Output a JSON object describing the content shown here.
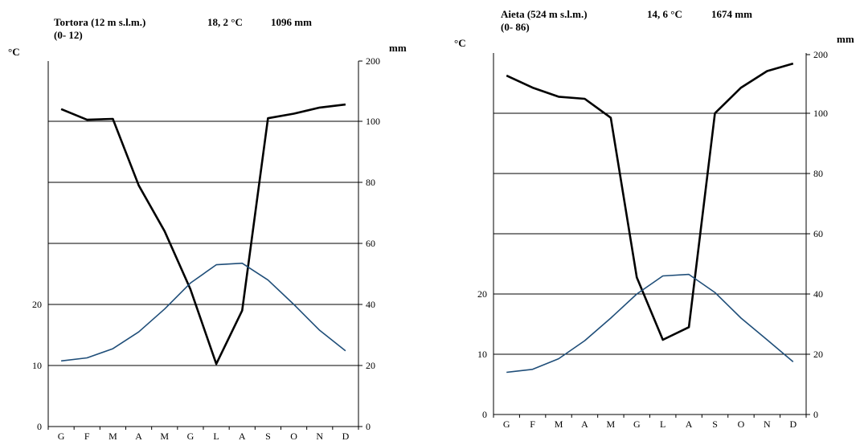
{
  "chart_data": [
    {
      "type": "line",
      "title": {
        "station": "Tortora (12 m s.l.m.)",
        "temperature": "18, 2 °C",
        "precipitation": "1096 mm",
        "years": "(0- 12)"
      },
      "ylabel_left": "°C",
      "ylabel_right": "mm",
      "categories": [
        "G",
        "F",
        "M",
        "A",
        "M",
        "G",
        "L",
        "A",
        "S",
        "O",
        "N",
        "D"
      ],
      "left_ticks": [
        "0",
        "10",
        "20"
      ],
      "right_ticks": [
        "0",
        "20",
        "40",
        "60",
        "80",
        "100",
        "200"
      ],
      "ylim_mm": [
        0,
        210
      ],
      "series": [
        {
          "name": "",
          "axis": "right",
          "color": "#000000",
          "values": [
            104,
            100.5,
            100.8,
            79,
            64,
            45,
            20.5,
            38,
            101,
            102.5,
            104.5,
            105.5
          ]
        },
        {
          "name": "",
          "axis": "right",
          "color": "#1f4e79",
          "values": [
            21.5,
            22.5,
            25.5,
            31,
            38.5,
            47,
            53,
            53.5,
            48,
            40,
            31.5,
            24.8
          ]
        }
      ]
    },
    {
      "type": "line",
      "title": {
        "station": "Aieta (524 m s.l.m.)",
        "temperature": "14, 6 °C",
        "precipitation": "1674 mm",
        "years": "(0- 86)"
      },
      "ylabel_left": "°C",
      "ylabel_right": "mm",
      "categories": [
        "G",
        "F",
        "M",
        "A",
        "M",
        "G",
        "L",
        "A",
        "S",
        "O",
        "N",
        "D"
      ],
      "left_ticks": [
        "0",
        "10",
        "20"
      ],
      "right_ticks": [
        "0",
        "20",
        "40",
        "60",
        "80",
        "100",
        "200"
      ],
      "ylim_mm": [
        0,
        120
      ],
      "series": [
        {
          "name": "",
          "axis": "right",
          "color": "#000000",
          "values": [
            112.5,
            108.5,
            105.5,
            104.8,
            98.5,
            45.5,
            24.8,
            29,
            100,
            108.5,
            114,
            116.5
          ]
        },
        {
          "name": "",
          "axis": "right",
          "color": "#1f4e79",
          "values": [
            14,
            15,
            18.5,
            24.5,
            32,
            40,
            46,
            46.5,
            40.5,
            32,
            24.8,
            17.5
          ]
        }
      ]
    }
  ]
}
